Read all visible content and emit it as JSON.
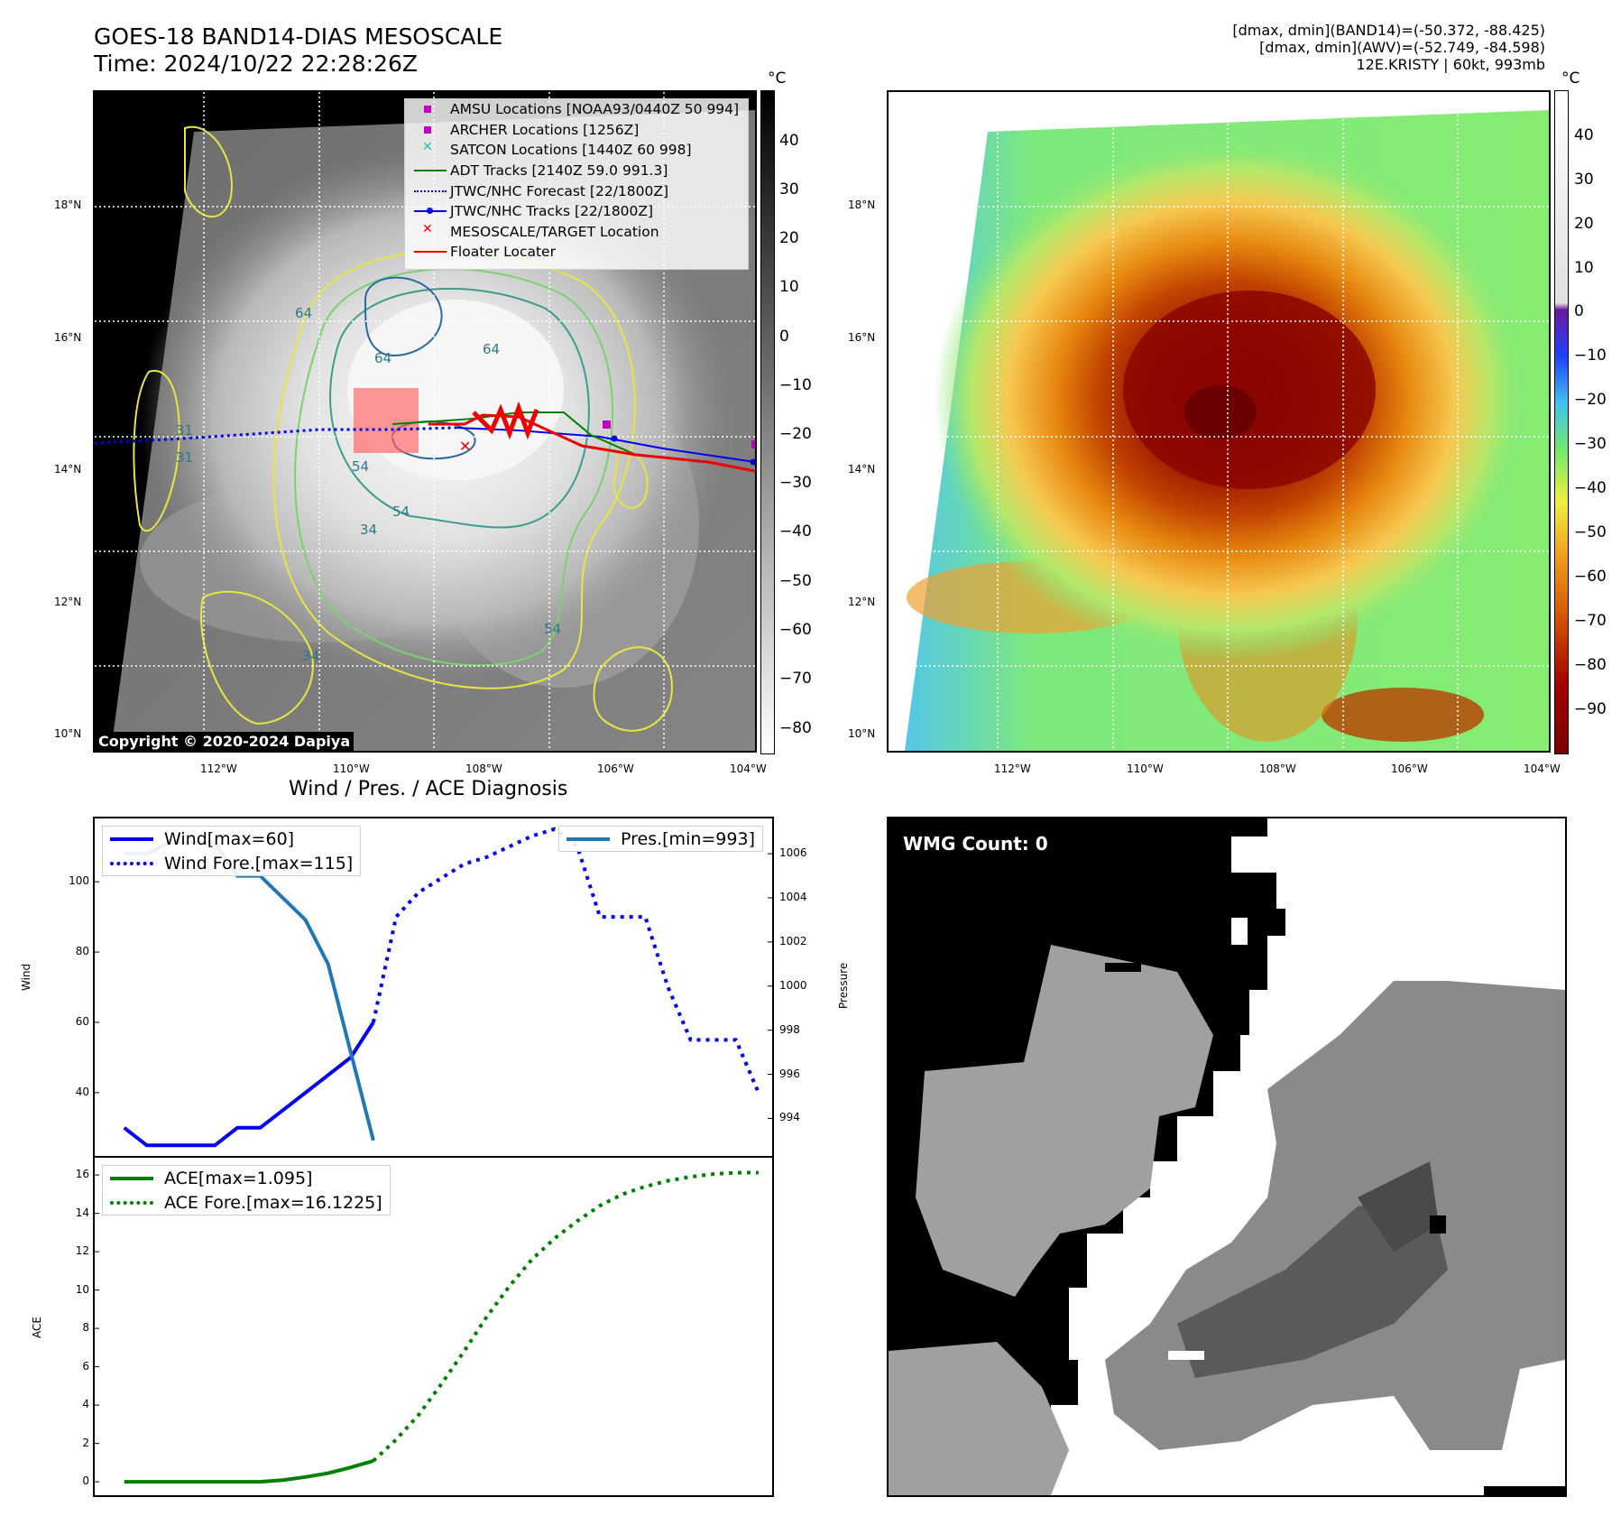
{
  "header": {
    "title_line1": "GOES-18 BAND14-DIAS MESOSCALE",
    "title_line2": "Time: 2024/10/22 22:28:26Z",
    "meta_line1": "[dmax, dmin](BAND14)=(-50.372, -88.425)",
    "meta_line2": "[dmax, dmin](AWV)=(-52.749, -84.598)",
    "meta_line3": "12E.KRISTY | 60kt, 993mb"
  },
  "map": {
    "lat_labels": [
      "18°N",
      "16°N",
      "14°N",
      "12°N",
      "10°N"
    ],
    "lon_labels": [
      "112°W",
      "110°W",
      "108°W",
      "106°W",
      "104°W"
    ],
    "copyright": "Copyright © 2020-2024 Dapiya",
    "contour_labels": [
      "64",
      "64",
      "54",
      "54",
      "54",
      "34",
      "34",
      "31",
      "31",
      "64"
    ],
    "legend": [
      {
        "label": "AMSU Locations [NOAA93/0440Z 50 994]",
        "color": "#c000c0",
        "symbol": "square"
      },
      {
        "label": "ARCHER Locations [1256Z]",
        "color": "#c000c0",
        "symbol": "square"
      },
      {
        "label": "SATCON Locations [1440Z 60 998]",
        "color": "#20c0b0",
        "symbol": "x"
      },
      {
        "label": "ADT Tracks [2140Z 59.0 991.3]",
        "color": "#008000",
        "symbol": "line"
      },
      {
        "label": "JTWC/NHC Forecast [22/1800Z]",
        "color": "#0000ee",
        "symbol": "dotted"
      },
      {
        "label": "JTWC/NHC Tracks [22/1800Z]",
        "color": "#0000ee",
        "symbol": "line-dot"
      },
      {
        "label": "MESOSCALE/TARGET Location",
        "color": "#ee0000",
        "symbol": "x"
      },
      {
        "label": "Floater Locater",
        "color": "#ee0000",
        "symbol": "line"
      }
    ]
  },
  "colorbar_left": {
    "unit": "°C",
    "ticks": [
      "40",
      "30",
      "20",
      "10",
      "0",
      "−10",
      "−20",
      "−30",
      "−40",
      "−50",
      "−60",
      "−70",
      "−80"
    ]
  },
  "colorbar_right": {
    "unit": "°C",
    "ticks": [
      "40",
      "30",
      "20",
      "10",
      "0",
      "−10",
      "−20",
      "−30",
      "−40",
      "−50",
      "−60",
      "−70",
      "−80",
      "−90"
    ]
  },
  "diagnosis": {
    "title": "Wind / Pres. / ACE Diagnosis",
    "wind_ylabel": "Wind",
    "pres_ylabel": "Pressure",
    "ace_ylabel": "ACE",
    "legend_wind": "Wind[max=60]",
    "legend_wind_fore": "Wind Fore.[max=115]",
    "legend_pres": "Pres.[min=993]",
    "legend_ace": "ACE[max=1.095]",
    "legend_ace_fore": "ACE Fore.[max=16.1225]"
  },
  "wmg": {
    "label": "WMG Count: 0"
  },
  "chart_data": [
    {
      "type": "line",
      "title": "Wind / Pres. / ACE Diagnosis",
      "ylabel": "Wind",
      "y2label": "Pressure",
      "ylim": [
        22,
        118
      ],
      "y2lim": [
        992.3,
        1007.6
      ],
      "yticks": [
        40,
        60,
        80,
        100
      ],
      "y2ticks": [
        994,
        996,
        998,
        1000,
        1002,
        1004,
        1006
      ],
      "xlim": [
        -0.3,
        29.6
      ],
      "series": [
        {
          "name": "Wind[max=60]",
          "color": "#0000ee",
          "style": "solid",
          "x": [
            1,
            2,
            3,
            4,
            5,
            6,
            7,
            8,
            9,
            10,
            11,
            12
          ],
          "values": [
            30,
            25,
            25,
            25,
            25,
            30,
            30,
            35,
            40,
            45,
            50,
            60
          ]
        },
        {
          "name": "Wind Fore.[max=115]",
          "color": "#0000ee",
          "style": "dotted",
          "x": [
            12,
            13,
            14,
            15,
            16,
            17,
            18,
            19,
            20,
            21,
            22,
            23,
            24,
            25,
            26,
            27,
            28,
            29
          ],
          "values": [
            60,
            90,
            97,
            101,
            105,
            107,
            110,
            113,
            115,
            110,
            90,
            90,
            90,
            70,
            55,
            55,
            55,
            40
          ]
        },
        {
          "name": "Pres.[min=993]",
          "color": "#1f77b4",
          "style": "solid",
          "axis": "y2",
          "x": [
            1,
            2,
            3,
            4,
            5,
            6,
            7,
            8,
            9,
            10,
            11,
            12
          ],
          "values": [
            1006,
            1006,
            1006.5,
            1006.5,
            1006.5,
            1005,
            1005,
            1004,
            1003,
            1001,
            997,
            993
          ]
        }
      ]
    },
    {
      "type": "line",
      "ylabel": "ACE",
      "ylim": [
        -0.7,
        16.9
      ],
      "yticks": [
        0,
        2,
        4,
        6,
        8,
        10,
        12,
        14,
        16
      ],
      "xlim": [
        -0.3,
        29.6
      ],
      "series": [
        {
          "name": "ACE[max=1.095]",
          "color": "#008000",
          "style": "solid",
          "x": [
            1,
            2,
            3,
            4,
            5,
            6,
            7,
            8,
            9,
            10,
            11,
            12
          ],
          "values": [
            0,
            0,
            0,
            0,
            0,
            0,
            0,
            0.09,
            0.25,
            0.45,
            0.75,
            1.095
          ]
        },
        {
          "name": "ACE Fore.[max=16.1225]",
          "color": "#008000",
          "style": "dotted",
          "x": [
            12,
            13,
            14,
            15,
            16,
            17,
            18,
            19,
            20,
            21,
            22,
            23,
            24,
            25,
            26,
            27,
            28,
            29
          ],
          "values": [
            1.095,
            2.2,
            3.5,
            5.1,
            6.8,
            8.6,
            10.2,
            11.6,
            12.7,
            13.6,
            14.4,
            15.0,
            15.4,
            15.7,
            15.9,
            16.05,
            16.12,
            16.1225
          ]
        }
      ]
    }
  ]
}
